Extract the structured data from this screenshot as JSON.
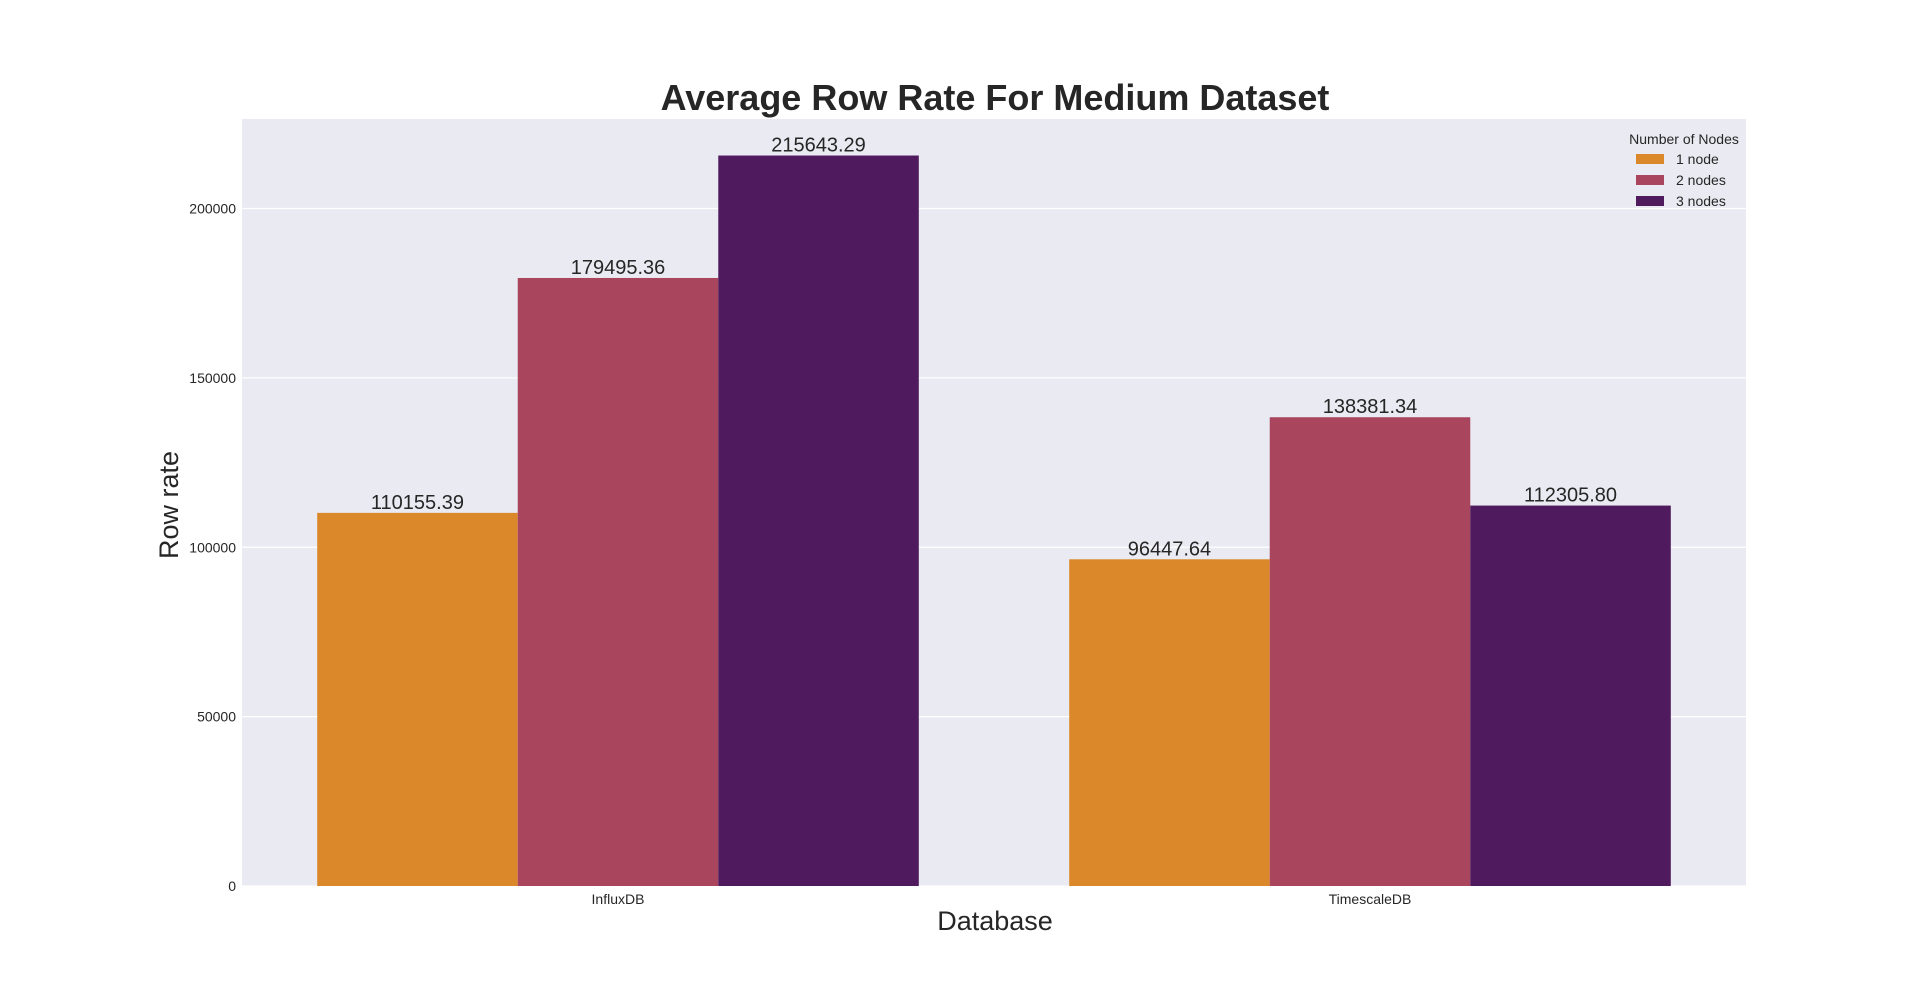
{
  "chart_data": {
    "type": "bar",
    "title": "Average Row Rate For Medium Dataset",
    "xlabel": "Database",
    "ylabel": "Row rate",
    "categories": [
      "InfluxDB",
      "TimescaleDB"
    ],
    "series": [
      {
        "name": "1 node",
        "color": "#da8829",
        "values": [
          110155.39,
          96447.64
        ],
        "labels": [
          "110155.39",
          "96447.64"
        ]
      },
      {
        "name": "2 nodes",
        "color": "#a9455d",
        "values": [
          179495.36,
          138381.34
        ],
        "labels": [
          "179495.36",
          "138381.34"
        ]
      },
      {
        "name": "3 nodes",
        "color": "#501a5f",
        "values": [
          215643.29,
          112305.8
        ],
        "labels": [
          "215643.29",
          "112305.80"
        ]
      }
    ],
    "ylim": [
      0,
      226425
    ],
    "yticks": [
      0,
      50000,
      100000,
      150000,
      200000
    ],
    "ytick_labels": [
      "0",
      "50000",
      "100000",
      "150000",
      "200000"
    ],
    "legend": {
      "title": "Number of Nodes",
      "placement": "top-right"
    },
    "grid": true,
    "background_color": "#eaeaf2"
  }
}
